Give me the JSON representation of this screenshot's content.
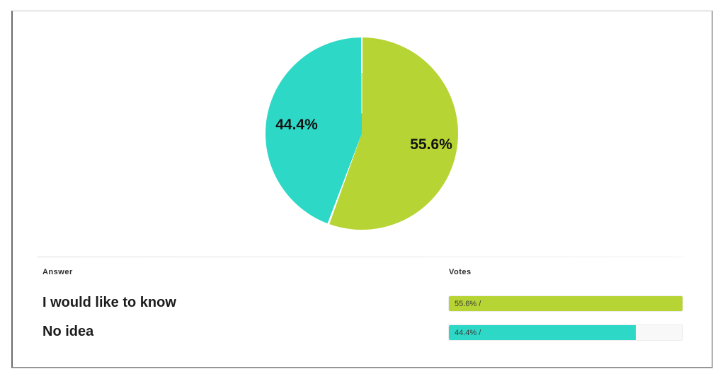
{
  "table": {
    "answer_header": "Answer",
    "votes_header": "Votes",
    "rows": [
      {
        "answer": "I would like to know",
        "votes_label": "55.6% /",
        "percent": 55.6,
        "color": "#b6d433"
      },
      {
        "answer": "No idea",
        "votes_label": "44.4% /",
        "percent": 44.4,
        "color": "#2ed8c6"
      }
    ]
  },
  "chart_data": {
    "type": "pie",
    "title": "",
    "labels": [
      "I would like to know",
      "No idea"
    ],
    "values": [
      55.6,
      44.4
    ],
    "unit": "percent",
    "colors": [
      "#b6d433",
      "#2ed8c6"
    ],
    "slice_labels": [
      "55.6%",
      "44.4%"
    ],
    "start_angle_deg": 0,
    "direction": "clockwise",
    "slice_separator_color": "#ffffff",
    "legend": "none"
  }
}
